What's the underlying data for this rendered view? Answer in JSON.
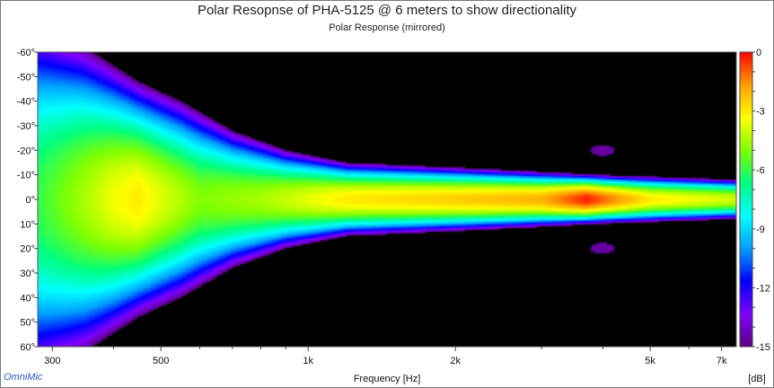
{
  "title": "Polar Resopnse of PHA-5125 @ 6 meters to show directionality",
  "subtitle": "Polar Response (mirrored)",
  "brand": "OmniMic",
  "chart_data": {
    "type": "heatmap",
    "title": "Polar Resopnse of PHA-5125 @ 6 meters to show directionality",
    "subtitle": "Polar Response (mirrored)",
    "xlabel": "Frequency [Hz]",
    "ylabel": "",
    "x_scale": "log",
    "xlim": [
      280,
      7500
    ],
    "ylim": [
      60,
      -60
    ],
    "x_ticks": [
      {
        "value": 300,
        "label": "300"
      },
      {
        "value": 500,
        "label": "500"
      },
      {
        "value": 1000,
        "label": "1k"
      },
      {
        "value": 2000,
        "label": "2k"
      },
      {
        "value": 5000,
        "label": "5k"
      },
      {
        "value": 7000,
        "label": "7k"
      }
    ],
    "y_ticks": [
      {
        "value": -60,
        "label": "-60°"
      },
      {
        "value": -50,
        "label": "-50°"
      },
      {
        "value": -40,
        "label": "-40°"
      },
      {
        "value": -30,
        "label": "-30°"
      },
      {
        "value": -20,
        "label": "-20°"
      },
      {
        "value": -10,
        "label": "-10°"
      },
      {
        "value": 0,
        "label": "0°"
      },
      {
        "value": 10,
        "label": "10°"
      },
      {
        "value": 20,
        "label": "20°"
      },
      {
        "value": 30,
        "label": "30°"
      },
      {
        "value": 40,
        "label": "40°"
      },
      {
        "value": 50,
        "label": "50°"
      },
      {
        "value": 60,
        "label": "60°"
      }
    ],
    "colorbar": {
      "label": "[dB]",
      "range": [
        -15,
        0
      ],
      "ticks": [
        {
          "value": 0,
          "label": "0"
        },
        {
          "value": -3,
          "label": "-3"
        },
        {
          "value": -6,
          "label": "-6"
        },
        {
          "value": -9,
          "label": "-9"
        },
        {
          "value": -12,
          "label": "-12"
        },
        {
          "value": -15,
          "label": "-15"
        }
      ],
      "colors": [
        "#5a0080",
        "#8000ff",
        "#0000ff",
        "#00a0ff",
        "#00ffff",
        "#00ff80",
        "#80ff00",
        "#ffff00",
        "#ffa000",
        "#ff0000"
      ]
    },
    "background_color": "#000000",
    "mirrored": true,
    "profile_db_at_0deg": [
      {
        "freq": 280,
        "db": -6
      },
      {
        "freq": 400,
        "db": -3.5
      },
      {
        "freq": 450,
        "db": -3
      },
      {
        "freq": 600,
        "db": -5
      },
      {
        "freq": 800,
        "db": -4.5
      },
      {
        "freq": 1200,
        "db": -3
      },
      {
        "freq": 2000,
        "db": -2.5
      },
      {
        "freq": 3000,
        "db": -2
      },
      {
        "freq": 3700,
        "db": -0.3
      },
      {
        "freq": 5000,
        "db": -3
      },
      {
        "freq": 7500,
        "db": -4
      }
    ],
    "beamwidth_minus15db_deg": [
      {
        "freq": 280,
        "half_angle": 70
      },
      {
        "freq": 350,
        "half_angle": 62
      },
      {
        "freq": 450,
        "half_angle": 48
      },
      {
        "freq": 550,
        "half_angle": 40
      },
      {
        "freq": 700,
        "half_angle": 28
      },
      {
        "freq": 900,
        "half_angle": 20
      },
      {
        "freq": 1200,
        "half_angle": 15
      },
      {
        "freq": 2000,
        "half_angle": 13
      },
      {
        "freq": 4000,
        "half_angle": 10
      },
      {
        "freq": 7500,
        "half_angle": 8
      }
    ],
    "side_lobes": [
      {
        "freq": 4000,
        "angle": -20,
        "db": -15
      },
      {
        "freq": 4000,
        "angle": 20,
        "db": -15
      }
    ]
  }
}
